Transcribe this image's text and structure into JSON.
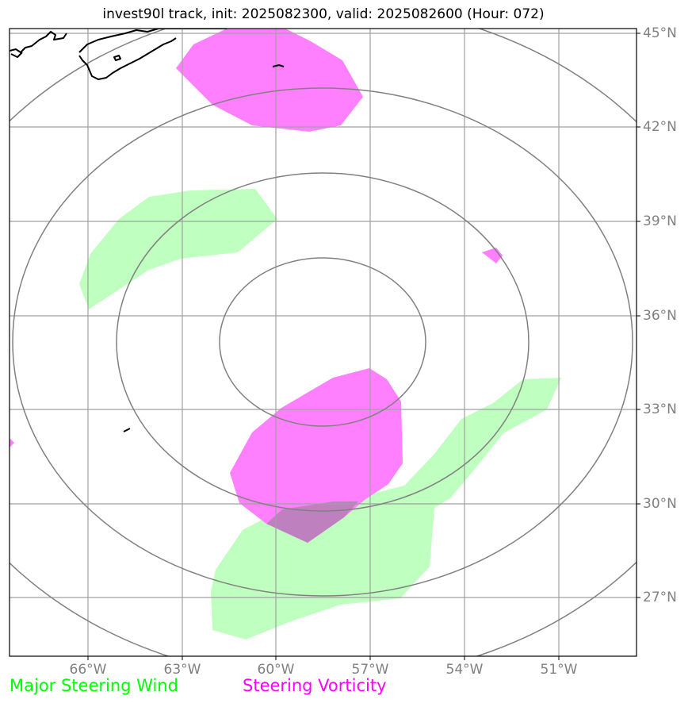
{
  "title": "invest90l track, init: 2025082300, valid: 2025082600 (Hour: 072)",
  "lat_labels": [
    "45°N",
    "42°N",
    "39°N",
    "36°N",
    "33°N",
    "30°N",
    "27°N"
  ],
  "lon_labels": [
    "66°W",
    "63°W",
    "60°W",
    "57°W",
    "54°W",
    "51°W"
  ],
  "legend": [
    {
      "label": "Major Steering Wind",
      "color": "#00ff00"
    },
    {
      "label": "Steering Vorticity",
      "color": "#ff00ff"
    }
  ],
  "colors": {
    "wind_fill": "#bfffbf",
    "vorticity_fill": "#ff80ff",
    "overlap_fill": "#bf80bf",
    "grid": "#a0a0a0",
    "range_rings": "#808080",
    "coastline": "#000000"
  },
  "map_extent": {
    "lon": [
      -69,
      -49
    ],
    "lat": [
      25,
      45
    ]
  }
}
